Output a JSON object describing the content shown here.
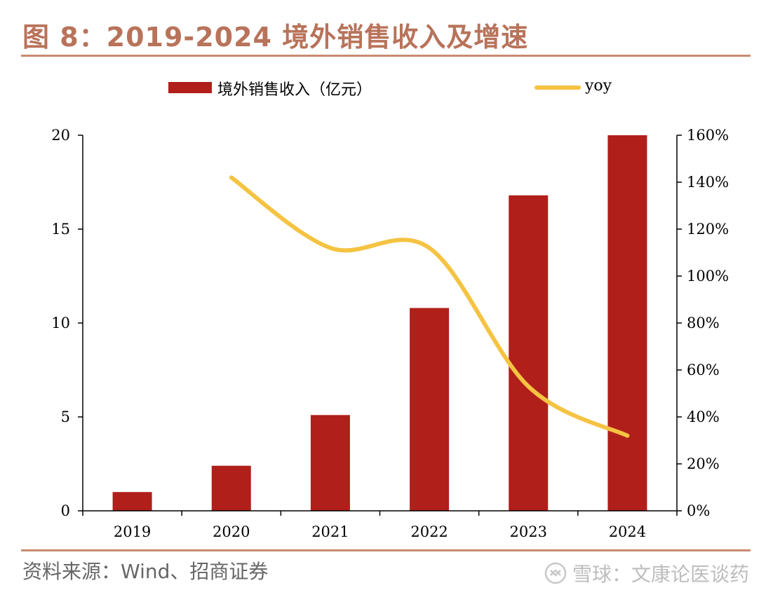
{
  "header": {
    "title": "图 8：2019-2024 境外销售收入及增速"
  },
  "legend": {
    "bar_label": "境外销售收入（亿元）",
    "line_label": "yoy"
  },
  "footer": {
    "source": "资料来源：Wind、招商证券",
    "watermark": "雪球：文康论医谈药"
  },
  "colors": {
    "bar": "#b01f1a",
    "line": "#f5c342",
    "title": "#b8735a",
    "rule": "#c98a70"
  },
  "chart_data": {
    "type": "bar",
    "categories": [
      "2019",
      "2020",
      "2021",
      "2022",
      "2023",
      "2024"
    ],
    "series": [
      {
        "name": "境外销售收入（亿元）",
        "type": "bar",
        "axis": "left",
        "values": [
          1.0,
          2.4,
          5.1,
          10.8,
          16.8,
          20.0
        ]
      },
      {
        "name": "yoy",
        "type": "line",
        "axis": "right",
        "values": [
          null,
          1.42,
          1.12,
          1.12,
          0.53,
          0.32
        ]
      }
    ],
    "y_left": {
      "ylim": [
        0,
        20
      ],
      "ticks": [
        0,
        5,
        10,
        15,
        20
      ],
      "tick_labels": [
        "0",
        "5",
        "10",
        "15",
        "20"
      ]
    },
    "y_right": {
      "ylim": [
        0,
        1.6
      ],
      "ticks": [
        0,
        0.2,
        0.4,
        0.6,
        0.8,
        1.0,
        1.2,
        1.4,
        1.6
      ],
      "tick_labels": [
        "0%",
        "20%",
        "40%",
        "60%",
        "80%",
        "100%",
        "120%",
        "140%",
        "160%"
      ]
    },
    "legend_position": "top",
    "grid": false
  }
}
